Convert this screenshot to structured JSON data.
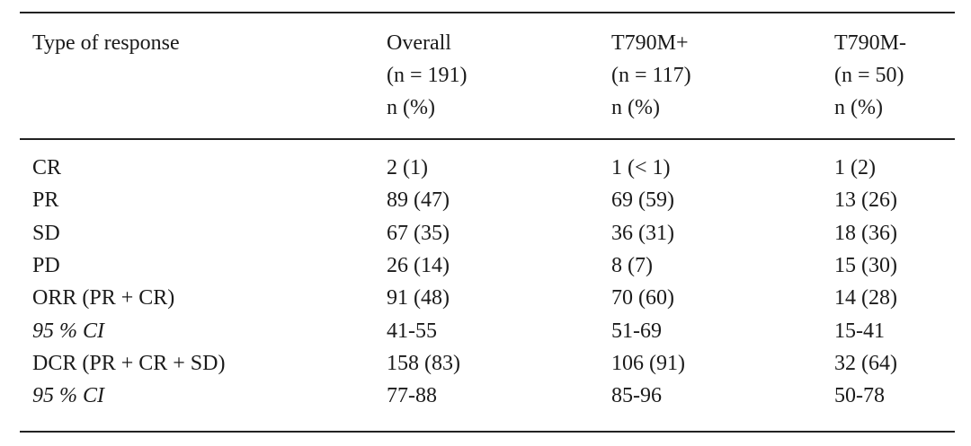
{
  "table": {
    "header": [
      [
        "Type of response"
      ],
      [
        "Overall",
        "(n = 191)",
        "n (%)"
      ],
      [
        "T790M+",
        "(n = 117)",
        "n (%)"
      ],
      [
        "T790M-",
        "(n = 50)",
        "n (%)"
      ]
    ],
    "rows": [
      [
        "CR",
        "2 (1)",
        "1 (< 1)",
        "1 (2)"
      ],
      [
        "PR",
        "89 (47)",
        "69 (59)",
        "13 (26)"
      ],
      [
        "SD",
        "67 (35)",
        "36 (31)",
        "18 (36)"
      ],
      [
        "PD",
        "26 (14)",
        "8 (7)",
        "15 (30)"
      ],
      [
        "ORR (PR + CR)",
        "91 (48)",
        "70 (60)",
        "14 (28)"
      ],
      [
        "95 % CI",
        "41-55",
        "51-69",
        "15-41"
      ],
      [
        "DCR (PR + CR + SD)",
        "158 (83)",
        "106 (91)",
        "32 (64)"
      ],
      [
        "95 % CI",
        "77-88",
        "85-96",
        "50-78"
      ]
    ]
  }
}
